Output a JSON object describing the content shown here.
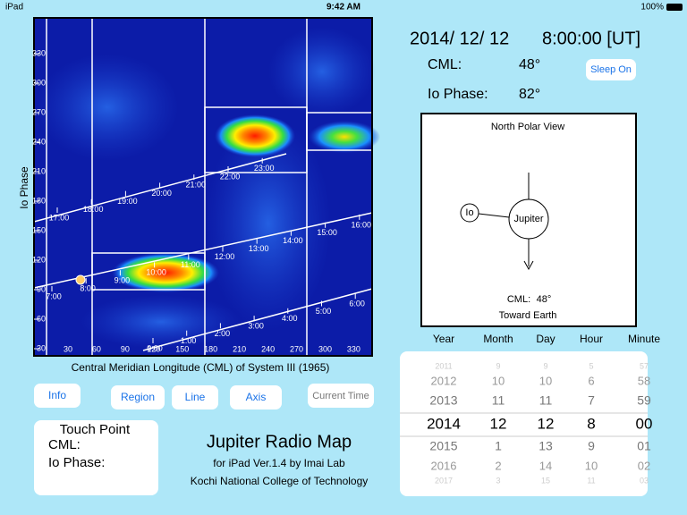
{
  "status_bar": {
    "carrier": "iPad",
    "time": "9:42 AM",
    "battery": "100%"
  },
  "map": {
    "y_axis_label": "Io Phase",
    "x_axis_label": "Central Meridian Longitude (CML) of System III (1965)",
    "x_ticks": [
      30,
      60,
      90,
      120,
      150,
      180,
      210,
      240,
      270,
      300,
      330
    ],
    "y_ticks": [
      30,
      60,
      90,
      120,
      150,
      180,
      210,
      240,
      270,
      300,
      330
    ],
    "time_lines": [
      [
        "17:00",
        "18:00",
        "19:00",
        "20:00",
        "21:00",
        "22:00",
        "23:00"
      ],
      [
        "7:00",
        "8:00",
        "9:00",
        "10:00",
        "11:00",
        "12:00",
        "13:00",
        "14:00",
        "15:00",
        "16:00"
      ],
      [
        "0:00",
        "1:00",
        "2:00",
        "3:00",
        "4:00",
        "5:00",
        "6:00"
      ]
    ]
  },
  "info": {
    "date": "2014/ 12/ 12",
    "time": "8:00:00 [UT]",
    "cml_label": "CML:",
    "cml_value": "48°",
    "io_phase_label": "Io Phase:",
    "io_phase_value": "82°",
    "sleep_button": "Sleep On"
  },
  "polar_view": {
    "title": "North Polar View",
    "io": "Io",
    "jupiter": "Jupiter",
    "cml_label": "CML:",
    "cml_value": "48°",
    "footer": "Toward Earth"
  },
  "picker": {
    "columns": [
      {
        "header": "Year",
        "rows": [
          "2011",
          "2012",
          "2013",
          "2014",
          "2015",
          "2016",
          "2017"
        ]
      },
      {
        "header": "Month",
        "rows": [
          "9",
          "10",
          "11",
          "12",
          "1",
          "2",
          "3"
        ]
      },
      {
        "header": "Day",
        "rows": [
          "9",
          "10",
          "11",
          "12",
          "13",
          "14",
          "15"
        ]
      },
      {
        "header": "Hour",
        "rows": [
          "5",
          "6",
          "7",
          "8",
          "9",
          "10",
          "11"
        ]
      },
      {
        "header": "Minute",
        "rows": [
          "57",
          "58",
          "59",
          "00",
          "01",
          "02",
          "03"
        ]
      }
    ]
  },
  "buttons": [
    "Info",
    "Region",
    "Line",
    "Axis",
    "Current Time"
  ],
  "touch_point": {
    "title": "Touch Point",
    "cml_label": "CML:",
    "io_phase_label": "Io Phase:"
  },
  "app": {
    "title": "Jupiter Radio Map",
    "subtitle": "for iPad  Ver.1.4  by Imai Lab",
    "institution": "Kochi National College of Technology"
  }
}
